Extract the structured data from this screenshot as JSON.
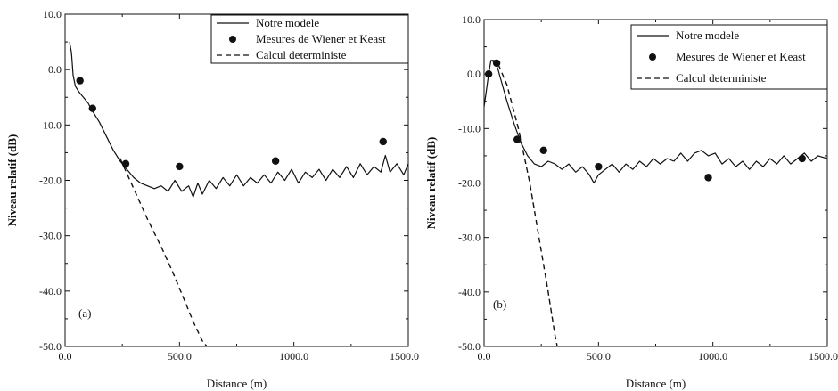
{
  "chart_data": [
    {
      "type": "line",
      "panel_label": "(a)",
      "xlabel": "Distance (m)",
      "ylabel": "Niveau relatif (dB)",
      "xlim": [
        0,
        1500
      ],
      "ylim": [
        -50,
        10
      ],
      "xticks": [
        "0.0",
        "500.0",
        "1000.0",
        "1500.0"
      ],
      "yticks": [
        "10.0",
        "0.0",
        "-10.0",
        "-20.0",
        "-30.0",
        "-40.0",
        "-50.0"
      ],
      "legend_position": "top-right",
      "legend": [
        "Notre modele",
        "Mesures de Wiener et Keast",
        "Calcul deterministe"
      ],
      "series": [
        {
          "name": "Notre modele",
          "style": "solid",
          "x": [
            20,
            28,
            35,
            45,
            60,
            80,
            100,
            120,
            150,
            180,
            210,
            240,
            270,
            300,
            330,
            360,
            390,
            420,
            450,
            480,
            510,
            540,
            560,
            580,
            600,
            630,
            660,
            690,
            720,
            750,
            780,
            810,
            840,
            870,
            900,
            930,
            960,
            990,
            1020,
            1050,
            1080,
            1110,
            1140,
            1170,
            1200,
            1230,
            1260,
            1290,
            1320,
            1350,
            1380,
            1400,
            1420,
            1450,
            1480,
            1500
          ],
          "y": [
            5,
            3,
            -1,
            -3,
            -4,
            -5,
            -6,
            -7.5,
            -9.5,
            -12,
            -14.5,
            -16.5,
            -18,
            -19.5,
            -20.5,
            -21,
            -21.5,
            -21,
            -22,
            -20,
            -22,
            -21,
            -23,
            -20.5,
            -22.5,
            -20,
            -21.5,
            -19.5,
            -21,
            -19,
            -21,
            -19.5,
            -20.5,
            -19,
            -20.5,
            -18.5,
            -20,
            -18,
            -20.5,
            -18.5,
            -19.5,
            -18,
            -20,
            -18,
            -19.5,
            -17.5,
            -19.5,
            -17,
            -19,
            -17.5,
            -18.5,
            -15.5,
            -18.5,
            -17,
            -19,
            -17
          ]
        },
        {
          "name": "Mesures de Wiener et Keast",
          "style": "marker",
          "x": [
            65,
            120,
            265,
            500,
            920,
            1390
          ],
          "y": [
            -2,
            -7,
            -17,
            -17.5,
            -16.5,
            -13
          ]
        },
        {
          "name": "Calcul deterministe",
          "style": "dashed",
          "x": [
            240,
            300,
            360,
            420,
            470,
            520,
            560,
            600,
            620
          ],
          "y": [
            -16,
            -21.5,
            -27,
            -32,
            -36.5,
            -41.5,
            -45.5,
            -49,
            -50
          ]
        }
      ]
    },
    {
      "type": "line",
      "panel_label": "(b)",
      "xlabel": "Distance (m)",
      "ylabel": "Niveau relatif (dB)",
      "xlim": [
        0,
        1500
      ],
      "ylim": [
        -50,
        10
      ],
      "xticks": [
        "0.0",
        "500.0",
        "1000.0",
        "1500.0"
      ],
      "yticks": [
        "10.0",
        "0.0",
        "-10.0",
        "-20.0",
        "-30.0",
        "-40.0",
        "-50.0"
      ],
      "legend_position": "top-right",
      "legend": [
        "Notre modele",
        "Mesures de Wiener et Keast",
        "Calcul deterministe"
      ],
      "series": [
        {
          "name": "Notre modele",
          "style": "solid",
          "x": [
            0,
            10,
            20,
            30,
            45,
            60,
            80,
            100,
            130,
            160,
            190,
            220,
            250,
            280,
            310,
            340,
            370,
            400,
            430,
            460,
            480,
            500,
            530,
            560,
            590,
            620,
            650,
            680,
            710,
            740,
            770,
            800,
            830,
            860,
            890,
            920,
            950,
            980,
            1010,
            1040,
            1070,
            1100,
            1130,
            1160,
            1190,
            1220,
            1250,
            1280,
            1310,
            1340,
            1370,
            1400,
            1430,
            1460,
            1500
          ],
          "y": [
            -6,
            -3,
            0,
            2.5,
            2.5,
            1,
            -2,
            -5,
            -9,
            -12.5,
            -15,
            -16.5,
            -17,
            -16,
            -16.5,
            -17.5,
            -16.5,
            -18,
            -17,
            -18.5,
            -20,
            -18.5,
            -17.5,
            -16.5,
            -18,
            -16.5,
            -17.5,
            -16,
            -17,
            -15.5,
            -16.5,
            -15.5,
            -16,
            -14.5,
            -16,
            -14.5,
            -14,
            -15,
            -14.5,
            -16.5,
            -15.5,
            -17,
            -16,
            -17.5,
            -16,
            -17,
            -15.5,
            -16.5,
            -15,
            -16.5,
            -15.5,
            -14.5,
            -16,
            -15,
            -15.5
          ]
        },
        {
          "name": "Mesures de Wiener et Keast",
          "style": "marker",
          "x": [
            20,
            55,
            145,
            260,
            500,
            980,
            1390
          ],
          "y": [
            0,
            2,
            -12,
            -14,
            -17,
            -19,
            -15.5
          ]
        },
        {
          "name": "Calcul deterministe",
          "style": "dashed",
          "x": [
            30,
            60,
            100,
            150,
            200,
            240,
            280,
            310,
            320
          ],
          "y": [
            2.5,
            2,
            -2,
            -10,
            -20,
            -30,
            -40,
            -48,
            -50
          ]
        }
      ]
    }
  ]
}
